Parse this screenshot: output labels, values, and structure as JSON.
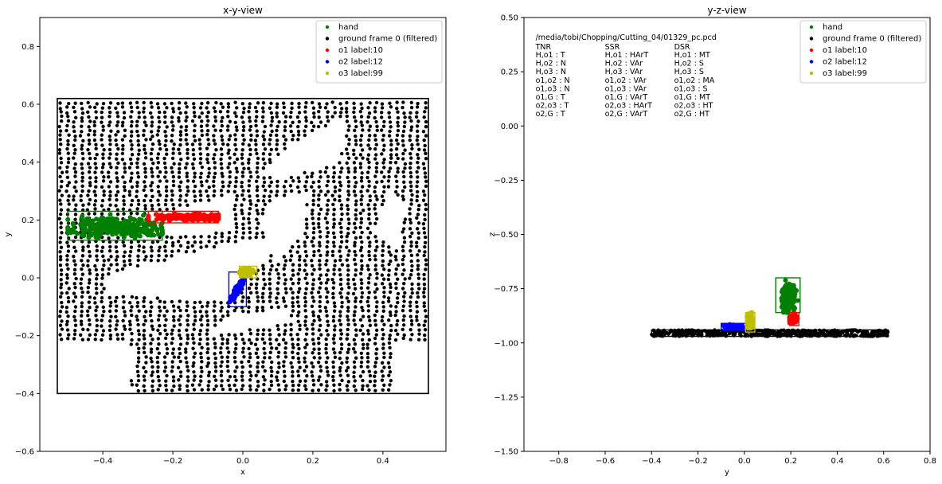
{
  "chart_data": [
    {
      "type": "scatter",
      "title": "x-y-view",
      "xlabel": "x",
      "ylabel": "y",
      "xlim": [
        -0.58,
        0.58
      ],
      "ylim": [
        -0.6,
        0.9
      ],
      "xticks": [
        -0.4,
        -0.2,
        0.0,
        0.2,
        0.4
      ],
      "xtick_labels": [
        "−0.4",
        "−0.2",
        "0.0",
        "0.2",
        "0.4"
      ],
      "yticks": [
        -0.6,
        -0.4,
        -0.2,
        0.0,
        0.2,
        0.4,
        0.6,
        0.8
      ],
      "ytick_labels": [
        "−0.6",
        "−0.4",
        "−0.2",
        "0.0",
        "0.2",
        "0.4",
        "0.6",
        "0.8"
      ],
      "legend_position": "top-right",
      "legend": [
        {
          "label": "hand",
          "color": "#008000"
        },
        {
          "label": "ground frame 0 (filtered)",
          "color": "#000000"
        },
        {
          "label": "o1 label:10",
          "color": "#ff0000"
        },
        {
          "label": "o2 label:12",
          "color": "#0000ff"
        },
        {
          "label": "o3 label:99",
          "color": "#bfbf00"
        }
      ],
      "ground_outline": [
        [
          -0.53,
          -0.4
        ],
        [
          0.53,
          0.62
        ]
      ],
      "ground_holes": [
        [
          [
            -0.35,
            0.2
          ],
          [
            -0.1,
            0.26
          ],
          [
            -0.03,
            0.3
          ],
          [
            -0.03,
            0.16
          ],
          [
            -0.35,
            0.13
          ]
        ],
        [
          [
            0.05,
            0.36
          ],
          [
            0.14,
            0.46
          ],
          [
            0.29,
            0.56
          ],
          [
            0.28,
            0.4
          ],
          [
            0.1,
            0.34
          ]
        ],
        [
          [
            -0.38,
            0.01
          ],
          [
            -0.04,
            0.12
          ],
          [
            0.12,
            0.13
          ],
          [
            -0.05,
            -0.08
          ],
          [
            -0.4,
            -0.06
          ]
        ],
        [
          [
            -0.04,
            -0.13
          ],
          [
            0.12,
            -0.11
          ],
          [
            0.14,
            -0.15
          ],
          [
            -0.1,
            -0.2
          ]
        ],
        [
          [
            0.06,
            0.25
          ],
          [
            0.18,
            0.3
          ],
          [
            0.18,
            0.16
          ],
          [
            0.1,
            0.05
          ],
          [
            0.06,
            0.12
          ]
        ],
        [
          [
            0.37,
            0.15
          ],
          [
            0.42,
            0.3
          ],
          [
            0.47,
            0.26
          ],
          [
            0.44,
            0.1
          ]
        ],
        [
          [
            -0.53,
            -0.22
          ],
          [
            -0.32,
            -0.22
          ],
          [
            -0.32,
            -0.41
          ],
          [
            -0.53,
            -0.41
          ]
        ],
        [
          [
            0.43,
            -0.22
          ],
          [
            0.54,
            -0.22
          ],
          [
            0.54,
            -0.41
          ],
          [
            0.43,
            -0.41
          ]
        ]
      ],
      "objects": [
        {
          "name": "hand",
          "color": "#008000",
          "center": [
            -0.36,
            0.175
          ],
          "spread": [
            0.14,
            0.035
          ],
          "box": [
            [
              -0.5,
              0.13
            ],
            [
              -0.23,
              0.23
            ]
          ]
        },
        {
          "name": "o1 label:10",
          "color": "#ff0000",
          "center": [
            -0.15,
            0.21
          ],
          "spread": [
            0.12,
            0.012
          ],
          "box": [
            [
              -0.27,
              0.19
            ],
            [
              -0.07,
              0.23
            ]
          ]
        },
        {
          "name": "o2 label:12",
          "color": "#0000ff",
          "center": [
            -0.015,
            -0.04
          ],
          "spread": [
            0.022,
            0.05
          ],
          "box": [
            [
              -0.04,
              -0.1
            ],
            [
              0.01,
              0.02
            ]
          ]
        },
        {
          "name": "o3 label:99",
          "color": "#bfbf00",
          "center": [
            0.01,
            0.02
          ],
          "spread": [
            0.018,
            0.012
          ],
          "box": [
            [
              -0.01,
              0.0
            ],
            [
              0.04,
              0.04
            ]
          ]
        }
      ]
    },
    {
      "type": "scatter",
      "title": "y-z-view",
      "xlabel": "y",
      "ylabel": "z",
      "xlim": [
        -0.95,
        0.8
      ],
      "ylim": [
        -1.5,
        0.5
      ],
      "xticks": [
        -0.8,
        -0.6,
        -0.4,
        -0.2,
        0.0,
        0.2,
        0.4,
        0.6,
        0.8
      ],
      "xtick_labels": [
        "−0.8",
        "−0.6",
        "−0.4",
        "−0.2",
        "0.0",
        "0.2",
        "0.4",
        "0.6",
        "0.8"
      ],
      "yticks": [
        -1.5,
        -1.25,
        -1.0,
        -0.75,
        -0.5,
        -0.25,
        0.0,
        0.25,
        0.5
      ],
      "ytick_labels": [
        "−1.50",
        "−1.25",
        "−1.00",
        "−0.75",
        "−0.50",
        "−0.25",
        "0.00",
        "0.25",
        "0.50"
      ],
      "legend_position": "top-right",
      "legend": [
        {
          "label": "hand",
          "color": "#008000"
        },
        {
          "label": "ground frame 0 (filtered)",
          "color": "#000000"
        },
        {
          "label": "o1 label:10",
          "color": "#ff0000"
        },
        {
          "label": "o2 label:12",
          "color": "#0000ff"
        },
        {
          "label": "o3 label:99",
          "color": "#bfbf00"
        }
      ],
      "ground_range": [
        [
          -0.4,
          -0.97
        ],
        [
          0.62,
          -0.94
        ]
      ],
      "objects": [
        {
          "name": "hand",
          "color": "#008000",
          "center": [
            0.19,
            -0.79
          ],
          "spread": [
            0.03,
            0.06
          ],
          "box": [
            [
              0.135,
              -0.86
            ],
            [
              0.24,
              -0.7
            ]
          ]
        },
        {
          "name": "o1 label:10",
          "color": "#ff0000",
          "center": [
            0.21,
            -0.89
          ],
          "spread": [
            0.02,
            0.02
          ],
          "box": [
            [
              0.195,
              -0.92
            ],
            [
              0.235,
              -0.86
            ]
          ]
        },
        {
          "name": "o2 label:12",
          "color": "#0000ff",
          "center": [
            -0.05,
            -0.925
          ],
          "spread": [
            0.04,
            0.008
          ],
          "box": [
            [
              -0.1,
              -0.94
            ],
            [
              0.01,
              -0.91
            ]
          ]
        },
        {
          "name": "o3 label:99",
          "color": "#bfbf00",
          "center": [
            0.025,
            -0.9
          ],
          "spread": [
            0.01,
            0.03
          ],
          "box": [
            [
              0.005,
              -0.95
            ],
            [
              0.045,
              -0.86
            ]
          ]
        }
      ],
      "annotation": {
        "path": "/media/tobi/Chopping/Cutting_04/01329_pc.pcd",
        "columns": [
          {
            "header": "TNR",
            "rows": [
              "H,o1  : T",
              "H,o2  : N",
              "H,o3  : N",
              "o1,o2 : N",
              "o1,o3 : N",
              "o1,G  : T",
              "o2,o3 : T",
              "o2,G  : T"
            ]
          },
          {
            "header": "SSR",
            "rows": [
              "H,o1  : HArT",
              "H,o2  : VAr",
              "H,o3  : VAr",
              "o1,o2 : VAr",
              "o1,o3 : VAr",
              "o1,G  : VArT",
              "o2,o3 : HArT",
              "o2,G  : VArT"
            ]
          },
          {
            "header": "DSR",
            "rows": [
              "H,o1  : MT",
              "H,o2  : S",
              "H,o3  : S",
              "o1,o2 : MA",
              "o1,o3 : S",
              "o1,G  : MT",
              "o2,o3 : HT",
              "o2,G  : HT"
            ]
          }
        ]
      }
    }
  ]
}
